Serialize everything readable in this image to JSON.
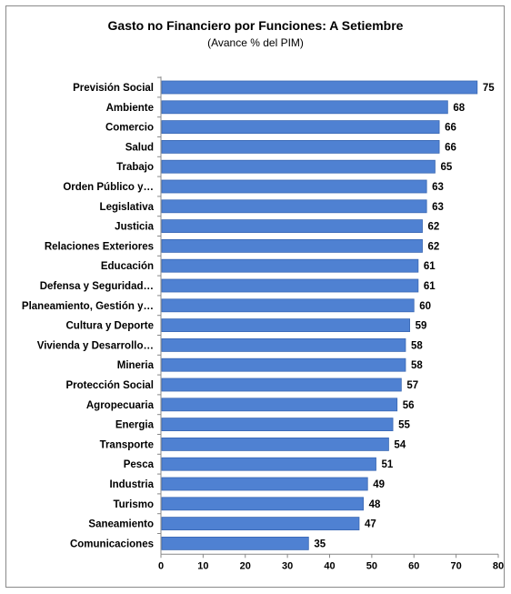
{
  "chart_data": {
    "type": "bar",
    "orientation": "horizontal",
    "title": "Gasto no Financiero por Funciones: A  Setiembre",
    "subtitle": "(Avance % del PIM)",
    "xlabel": "",
    "ylabel": "",
    "xlim": [
      0,
      80
    ],
    "xticks": [
      "0",
      "10",
      "20",
      "30",
      "40",
      "50",
      "60",
      "70",
      "80"
    ],
    "grid": false,
    "bar_color": "#4F81D2",
    "categories": [
      "Previsión Social",
      "Ambiente",
      "Comercio",
      "Salud",
      "Trabajo",
      "Orden Público y…",
      "Legislativa",
      "Justicia",
      "Relaciones Exteriores",
      "Educación",
      "Defensa y Seguridad…",
      "Planeamiento, Gestión y…",
      "Cultura y Deporte",
      "Vivienda y Desarrollo…",
      "Mineria",
      "Protección Social",
      "Agropecuaria",
      "Energia",
      "Transporte",
      "Pesca",
      "Industria",
      "Turismo",
      "Saneamiento",
      "Comunicaciones"
    ],
    "values": [
      75,
      68,
      66,
      66,
      65,
      63,
      63,
      62,
      62,
      61,
      61,
      60,
      59,
      58,
      58,
      57,
      56,
      55,
      54,
      51,
      49,
      48,
      47,
      35
    ]
  }
}
